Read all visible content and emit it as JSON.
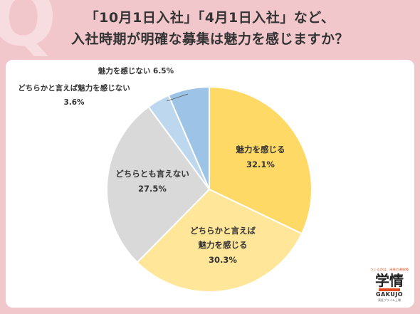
{
  "title_line1": "「10月1日入社」「4月1日入社」など、",
  "title_line2": "入社時期が明確な募集は魅力を感じますか？",
  "chart_data": {
    "type": "pie",
    "slices": [
      {
        "label": "魅力を感じる",
        "value": 32.1,
        "value_text": "32.1%",
        "color": "#ffd966"
      },
      {
        "label": "どちらかと言えば魅力を感じる",
        "value": 30.3,
        "value_text": "30.3%",
        "color": "#ffe699"
      },
      {
        "label": "どちらとも言えない",
        "value": 27.5,
        "value_text": "27.5%",
        "color": "#d9d9d9"
      },
      {
        "label": "どちらかと言えば魅力を感じない",
        "value": 3.6,
        "value_text": "3.6%",
        "color": "#bdd7ee"
      },
      {
        "label": "魅力を感じない",
        "value": 6.5,
        "value_text": "6.5%",
        "color": "#9dc3e6"
      }
    ]
  },
  "labels": {
    "s0_line1": "魅力を感じる",
    "s0_line2": "32.1%",
    "s1_line1": "どちらかと言えば",
    "s1_line2": "魅力を感じる",
    "s1_line3": "30.3%",
    "s2_line1": "どちらとも言えない",
    "s2_line2": "27.5%",
    "s3_line1": "どちらかと言えば魅力を感じない",
    "s3_line2": "3.6%",
    "s4_line1": "魅力を感じない 6.5%"
  },
  "logo": {
    "tagline": "つくるのは、未来の選択肢",
    "kanji": "学情",
    "latin": "GAKUJO",
    "small": "東証プライム上場"
  }
}
